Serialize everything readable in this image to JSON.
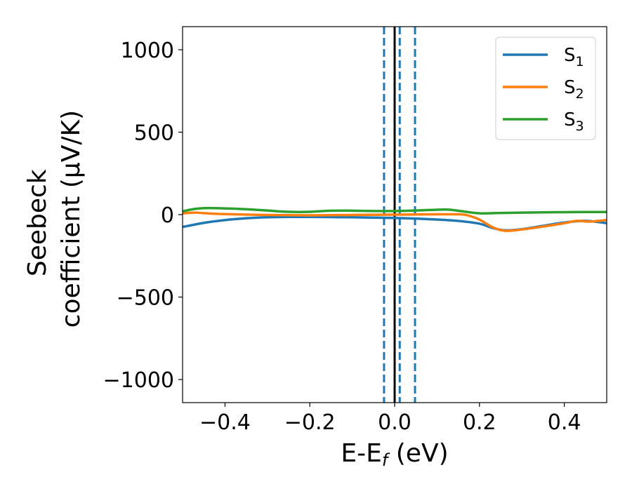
{
  "chart_data": {
    "type": "line",
    "xlabel": {
      "main": "E-E",
      "sub": "f",
      "unit": " (eV)"
    },
    "ylabel": {
      "line1": "Seebeck",
      "line2": "coefficient  (μV/K)"
    },
    "xlim": [
      -0.5,
      0.5
    ],
    "ylim": [
      -1140,
      1140
    ],
    "xticks": [
      -0.4,
      -0.2,
      0.0,
      0.2,
      0.4
    ],
    "xtick_labels": [
      "−0.4",
      "−0.2",
      "0.0",
      "0.2",
      "0.4"
    ],
    "yticks": [
      1000,
      500,
      0,
      -500,
      -1000
    ],
    "ytick_labels": [
      "1000",
      "500",
      "0",
      "−500",
      "−1000"
    ],
    "grid": false,
    "legend_position": "top-right",
    "vlines": [
      {
        "x": 0.0,
        "style": "solid",
        "color": "#000000"
      },
      {
        "x": -0.025,
        "style": "dashed",
        "color": "#1f77b4"
      },
      {
        "x": 0.012,
        "style": "dashed",
        "color": "#1f77b4"
      },
      {
        "x": 0.048,
        "style": "dashed",
        "color": "#1f77b4"
      }
    ],
    "series": [
      {
        "name": "S",
        "sub": "1",
        "color": "#1f77b4",
        "points": [
          [
            -0.5,
            -75
          ],
          [
            -0.45,
            -50
          ],
          [
            -0.4,
            -33
          ],
          [
            -0.35,
            -22
          ],
          [
            -0.3,
            -16
          ],
          [
            -0.25,
            -14
          ],
          [
            -0.2,
            -14
          ],
          [
            -0.15,
            -15
          ],
          [
            -0.1,
            -16
          ],
          [
            -0.05,
            -18
          ],
          [
            0.0,
            -20
          ],
          [
            0.05,
            -24
          ],
          [
            0.1,
            -30
          ],
          [
            0.15,
            -38
          ],
          [
            0.2,
            -55
          ],
          [
            0.23,
            -80
          ],
          [
            0.26,
            -95
          ],
          [
            0.3,
            -88
          ],
          [
            0.35,
            -68
          ],
          [
            0.4,
            -48
          ],
          [
            0.45,
            -38
          ],
          [
            0.5,
            -52
          ]
        ]
      },
      {
        "name": "S",
        "sub": "2",
        "color": "#ff7f0e",
        "points": [
          [
            -0.5,
            8
          ],
          [
            -0.47,
            12
          ],
          [
            -0.45,
            9
          ],
          [
            -0.4,
            3
          ],
          [
            -0.3,
            -2
          ],
          [
            -0.2,
            -4
          ],
          [
            -0.1,
            -2
          ],
          [
            0.0,
            0
          ],
          [
            0.05,
            1
          ],
          [
            0.1,
            2
          ],
          [
            0.15,
            2
          ],
          [
            0.17,
            -3
          ],
          [
            0.2,
            -30
          ],
          [
            0.23,
            -75
          ],
          [
            0.26,
            -98
          ],
          [
            0.3,
            -90
          ],
          [
            0.35,
            -72
          ],
          [
            0.4,
            -52
          ],
          [
            0.43,
            -38
          ],
          [
            0.46,
            -42
          ],
          [
            0.5,
            -33
          ]
        ]
      },
      {
        "name": "S",
        "sub": "3",
        "color": "#2ca02c",
        "points": [
          [
            -0.5,
            20
          ],
          [
            -0.47,
            35
          ],
          [
            -0.44,
            40
          ],
          [
            -0.4,
            38
          ],
          [
            -0.35,
            33
          ],
          [
            -0.3,
            25
          ],
          [
            -0.25,
            17
          ],
          [
            -0.2,
            17
          ],
          [
            -0.15,
            24
          ],
          [
            -0.1,
            24
          ],
          [
            -0.05,
            22
          ],
          [
            0.0,
            22
          ],
          [
            0.05,
            25
          ],
          [
            0.1,
            30
          ],
          [
            0.13,
            30
          ],
          [
            0.16,
            20
          ],
          [
            0.2,
            8
          ],
          [
            0.25,
            10
          ],
          [
            0.3,
            12
          ],
          [
            0.35,
            14
          ],
          [
            0.4,
            15
          ],
          [
            0.45,
            16
          ],
          [
            0.5,
            16
          ]
        ]
      }
    ]
  }
}
